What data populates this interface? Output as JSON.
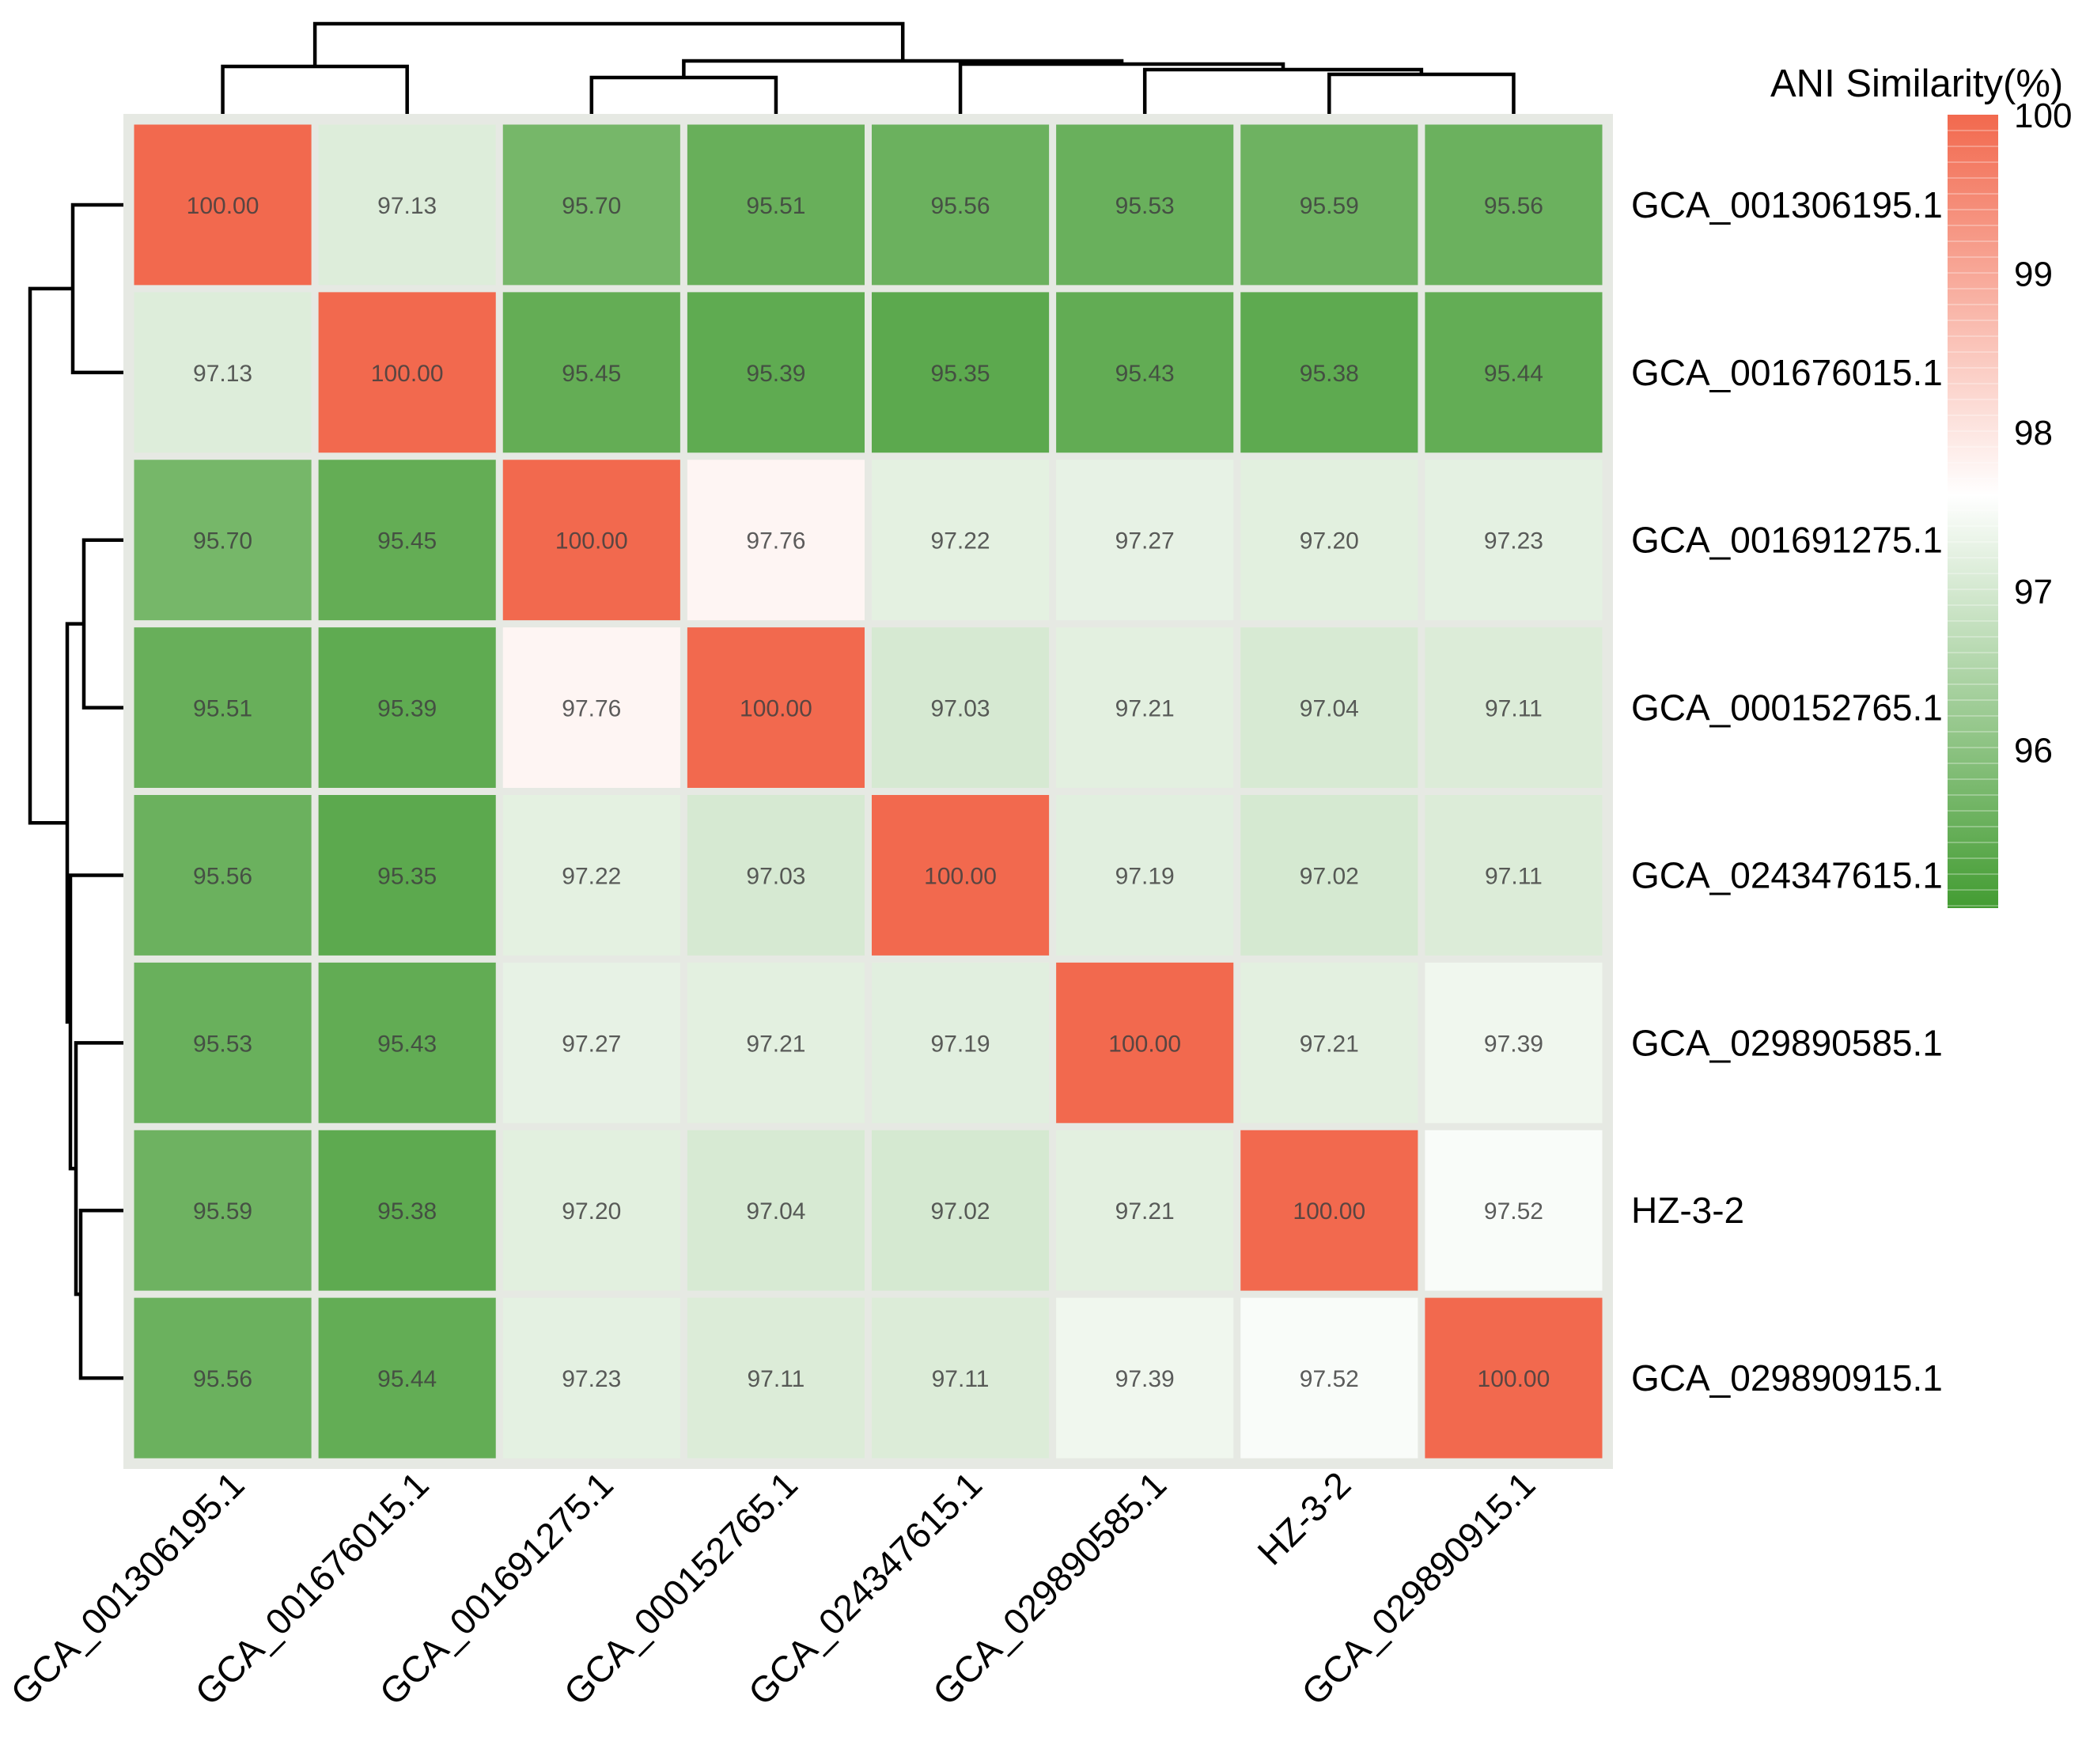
{
  "chart_data": {
    "type": "heatmap",
    "legend_title": "ANI Similarity(%)",
    "labels": [
      "GCA_001306195.1",
      "GCA_001676015.1",
      "GCA_001691275.1",
      "GCA_000152765.1",
      "GCA_024347615.1",
      "GCA_029890585.1",
      "HZ-3-2",
      "GCA_029890915.1"
    ],
    "rows": [
      "GCA_001306195.1",
      "GCA_001676015.1",
      "GCA_001691275.1",
      "GCA_000152765.1",
      "GCA_024347615.1",
      "GCA_029890585.1",
      "HZ-3-2",
      "GCA_029890915.1"
    ],
    "columns": [
      "GCA_001306195.1",
      "GCA_001676015.1",
      "GCA_001691275.1",
      "GCA_000152765.1",
      "GCA_024347615.1",
      "GCA_029890585.1",
      "HZ-3-2",
      "GCA_029890915.1"
    ],
    "values": [
      [
        100.0,
        97.13,
        95.7,
        95.51,
        95.56,
        95.53,
        95.59,
        95.56
      ],
      [
        97.13,
        100.0,
        95.45,
        95.39,
        95.35,
        95.43,
        95.38,
        95.44
      ],
      [
        95.7,
        95.45,
        100.0,
        97.76,
        97.22,
        97.27,
        97.2,
        97.23
      ],
      [
        95.51,
        95.39,
        97.76,
        100.0,
        97.03,
        97.21,
        97.04,
        97.11
      ],
      [
        95.56,
        95.35,
        97.22,
        97.03,
        100.0,
        97.19,
        97.02,
        97.11
      ],
      [
        95.53,
        95.43,
        97.27,
        97.21,
        97.19,
        100.0,
        97.21,
        97.39
      ],
      [
        95.59,
        95.38,
        97.2,
        97.04,
        97.02,
        97.21,
        100.0,
        97.52
      ],
      [
        95.56,
        95.44,
        97.23,
        97.11,
        97.11,
        97.39,
        97.52,
        100.0
      ]
    ],
    "cell_values_shown": true,
    "value_decimals": 2,
    "colorbar": {
      "min": 95,
      "max": 100,
      "ticks": [
        100,
        99,
        98,
        97,
        96
      ],
      "high_color": "#f2694e",
      "mid_color": "#ffffff",
      "low_color": "#439c32",
      "white_point": 97.6,
      "position": "right"
    },
    "grid_gap_color": "#e6e9e3",
    "cell_text_color": "#3f3f3f",
    "dendrogram": {
      "rows_and_columns_clustered": true,
      "line_color": "#000000",
      "merges": [
        {
          "id": "n34",
          "children": [
            2,
            3
          ],
          "height": 54
        },
        {
          "id": "n78",
          "children": [
            6,
            7
          ],
          "height": 58
        },
        {
          "id": "n678",
          "children": [
            5,
            "n78"
          ],
          "height": 64
        },
        {
          "id": "n12",
          "children": [
            0,
            1
          ],
          "height": 68
        },
        {
          "id": "n5678",
          "children": [
            4,
            "n678"
          ],
          "height": 71
        },
        {
          "id": "n345678",
          "children": [
            "n34",
            "n5678"
          ],
          "height": 75
        },
        {
          "id": "root",
          "children": [
            "n12",
            "n345678"
          ],
          "height": 122
        }
      ]
    }
  }
}
